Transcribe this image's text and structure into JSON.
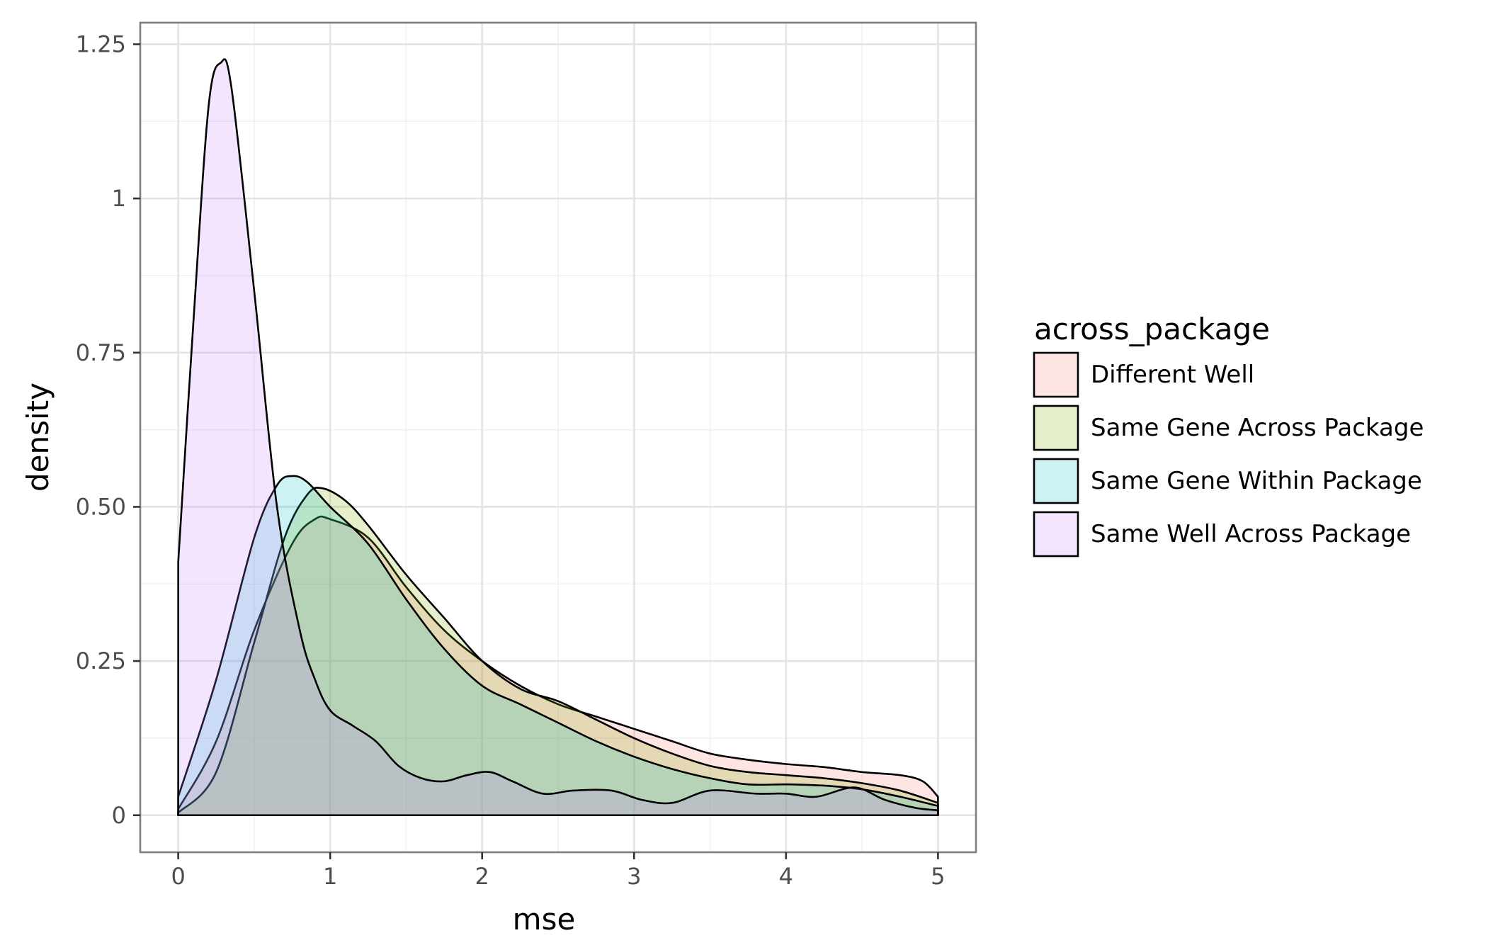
{
  "chart_data": {
    "type": "area",
    "subtype": "density",
    "title": "",
    "xlabel": "mse",
    "ylabel": "density",
    "xlim": [
      -0.25,
      5.25
    ],
    "ylim": [
      -0.06,
      1.285
    ],
    "x_ticks": [
      0,
      1,
      2,
      3,
      4,
      5
    ],
    "x_tick_labels": [
      "0",
      "1",
      "2",
      "3",
      "4",
      "5"
    ],
    "y_ticks": [
      0,
      0.25,
      0.5,
      0.75,
      1,
      1.25
    ],
    "y_tick_labels": [
      "0",
      "0.25",
      "0.50",
      "0.75",
      "1",
      "1.25"
    ],
    "grid": true,
    "legend": {
      "title": "across_package",
      "position": "right"
    },
    "series": [
      {
        "name": "Different Well",
        "fill": "#F8766D",
        "x": [
          0,
          0.25,
          0.5,
          0.75,
          0.9,
          1.0,
          1.25,
          1.5,
          1.75,
          2.0,
          2.25,
          2.5,
          2.75,
          3.0,
          3.25,
          3.5,
          3.75,
          4.0,
          4.25,
          4.5,
          4.75,
          4.9,
          5.0
        ],
        "y": [
          0.01,
          0.12,
          0.3,
          0.44,
          0.48,
          0.48,
          0.45,
          0.37,
          0.3,
          0.25,
          0.21,
          0.18,
          0.16,
          0.14,
          0.12,
          0.1,
          0.09,
          0.083,
          0.078,
          0.07,
          0.065,
          0.055,
          0.03
        ]
      },
      {
        "name": "Same Gene Across Package",
        "fill": "#7CAE00",
        "x": [
          0,
          0.25,
          0.5,
          0.7,
          0.85,
          0.95,
          1.1,
          1.25,
          1.5,
          1.75,
          2.0,
          2.25,
          2.5,
          2.75,
          3.0,
          3.25,
          3.5,
          3.75,
          4.0,
          4.25,
          4.5,
          4.75,
          5.0
        ],
        "y": [
          0.004,
          0.07,
          0.28,
          0.45,
          0.52,
          0.53,
          0.51,
          0.47,
          0.39,
          0.32,
          0.25,
          0.205,
          0.185,
          0.155,
          0.125,
          0.1,
          0.08,
          0.07,
          0.065,
          0.06,
          0.052,
          0.04,
          0.02
        ]
      },
      {
        "name": "Same Gene Within Package",
        "fill": "#00BFC4",
        "x": [
          0,
          0.25,
          0.5,
          0.65,
          0.75,
          0.85,
          1.0,
          1.25,
          1.5,
          1.75,
          2.0,
          2.25,
          2.5,
          2.75,
          3.0,
          3.25,
          3.5,
          3.75,
          4.0,
          4.25,
          4.5,
          4.75,
          5.0
        ],
        "y": [
          0.03,
          0.22,
          0.45,
          0.535,
          0.55,
          0.54,
          0.5,
          0.44,
          0.35,
          0.27,
          0.21,
          0.18,
          0.15,
          0.12,
          0.095,
          0.075,
          0.06,
          0.05,
          0.05,
          0.048,
          0.042,
          0.03,
          0.015
        ]
      },
      {
        "name": "Same Well Across Package",
        "fill": "#C77CFF",
        "x": [
          0,
          0.1,
          0.2,
          0.28,
          0.35,
          0.5,
          0.65,
          0.8,
          0.9,
          1.0,
          1.15,
          1.3,
          1.45,
          1.6,
          1.75,
          1.9,
          2.05,
          2.2,
          2.4,
          2.6,
          2.85,
          3.05,
          3.25,
          3.5,
          3.8,
          4.0,
          4.2,
          4.45,
          4.65,
          4.85,
          5.0
        ],
        "y": [
          0.41,
          0.8,
          1.15,
          1.22,
          1.18,
          0.85,
          0.5,
          0.3,
          0.22,
          0.17,
          0.145,
          0.12,
          0.08,
          0.06,
          0.055,
          0.065,
          0.07,
          0.055,
          0.035,
          0.04,
          0.04,
          0.025,
          0.02,
          0.04,
          0.035,
          0.035,
          0.03,
          0.045,
          0.025,
          0.012,
          0.008
        ]
      }
    ]
  }
}
